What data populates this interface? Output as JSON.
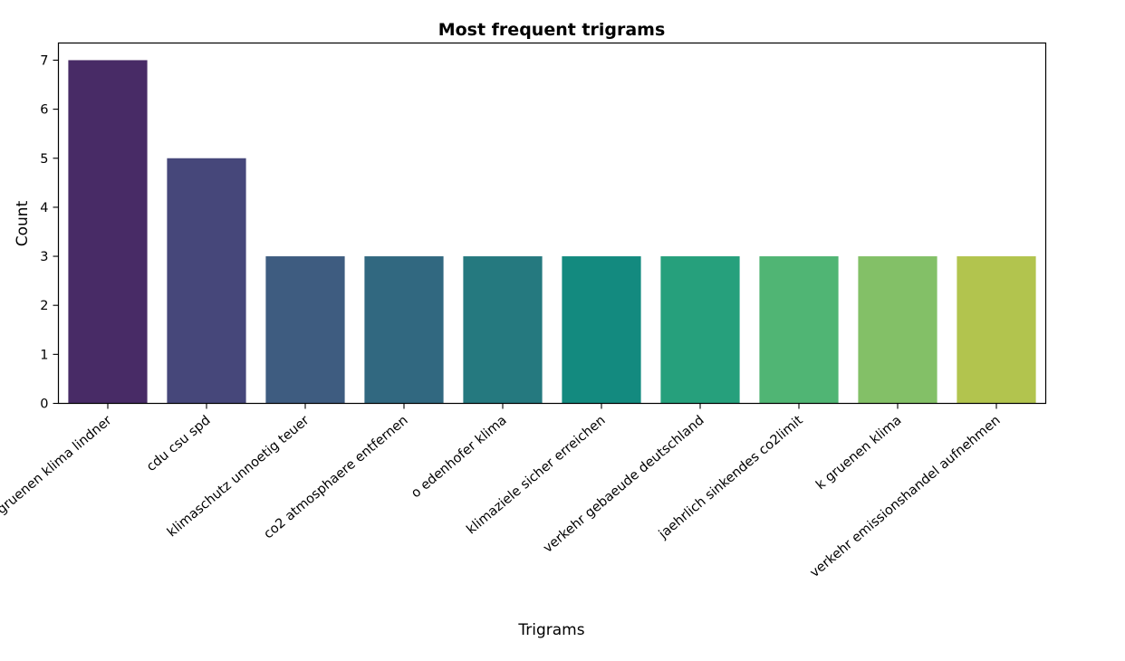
{
  "chart_data": {
    "type": "bar",
    "title": "Most frequent trigrams",
    "xlabel": "Trigrams",
    "ylabel": "Count",
    "categories": [
      "gruenen klima lindner",
      "cdu csu spd",
      "klimaschutz unnoetig teuer",
      "co2 atmosphaere entfernen",
      "o edenhofer klima",
      "klimaziele sicher erreichen",
      "verkehr gebaeude deutschland",
      "jaehrlich sinkendes co2limit",
      "k gruenen klima",
      "verkehr emissionshandel aufnehmen"
    ],
    "values": [
      7,
      5,
      3,
      3,
      3,
      3,
      3,
      3,
      3,
      3
    ],
    "colors": [
      "#482B66",
      "#46477A",
      "#3E5C80",
      "#316880",
      "#25797F",
      "#138A7F",
      "#26A07C",
      "#50B574",
      "#83C067",
      "#B2C44E"
    ],
    "ylim": [
      0,
      7.35
    ],
    "yticks": [
      0,
      1,
      2,
      3,
      4,
      5,
      6,
      7
    ],
    "grid": false,
    "legend": "none"
  }
}
